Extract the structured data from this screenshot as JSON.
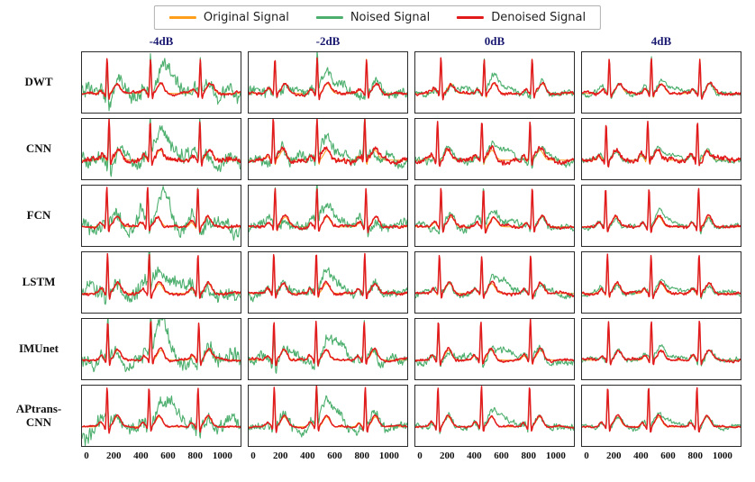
{
  "legend": {
    "items": [
      {
        "label": "Original Signal",
        "color": "#FF9E1B"
      },
      {
        "label": "Noised Signal",
        "color": "#4DAF6E"
      },
      {
        "label": "Denoised Signal",
        "color": "#E31A1C"
      }
    ]
  },
  "chart_data": {
    "type": "line",
    "description": "Grid of ECG denoising comparison plots: 6 denoising methods (rows) by 4 input SNR levels (columns). Each panel overlays the clean original ECG, the noise-corrupted ECG, and the denoised output.",
    "rows": [
      "DWT",
      "CNN",
      "FCN",
      "LSTM",
      "IMUnet",
      "APtrans-CNN"
    ],
    "columns": [
      "-4dB",
      "-2dB",
      "0dB",
      "4dB"
    ],
    "series_names": [
      "Original Signal",
      "Noised Signal",
      "Denoised Signal"
    ],
    "x_ticks": [
      0,
      200,
      400,
      600,
      800,
      1000
    ],
    "x_range": [
      0,
      1100
    ],
    "x_render_range": [
      -40,
      1140
    ],
    "y_range": [
      -0.55,
      1.18
    ],
    "ecg": {
      "r_peaks": [
        150,
        465,
        828
      ],
      "r_amp": 1.0,
      "t_amp": 0.28,
      "p_amp": 0.12,
      "q_amp": -0.1,
      "s_amp": -0.18
    },
    "noise_amp_by_column": [
      0.42,
      0.3,
      0.2,
      0.13
    ],
    "residual_amp_by_row": [
      0.055,
      0.095,
      0.055,
      0.055,
      0.048,
      0.032
    ],
    "red_peak_gain_by_row": [
      1.0,
      1.12,
      1.12,
      1.12,
      1.12,
      1.15
    ],
    "header_color": "#191970",
    "grid": false,
    "legend_position": "top-center"
  }
}
